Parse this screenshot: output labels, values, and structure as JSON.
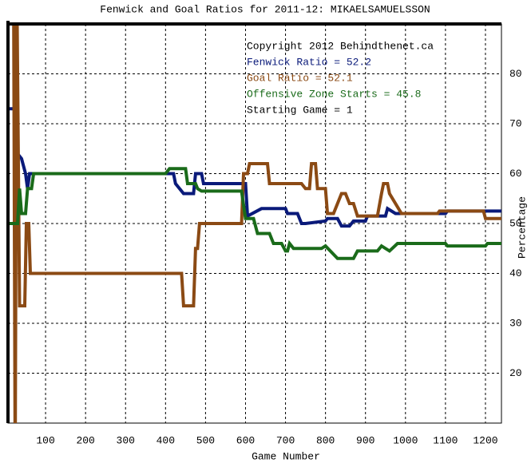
{
  "chart_data": {
    "type": "line",
    "title": "Fenwick and Goal Ratios for 2011-12: MIKAELSAMUELSSON",
    "x_label": "Game Number",
    "y_label": "Percentage",
    "annotations": [
      "Copyright 2012 Behindthenet.ca",
      "Starting Game = 1"
    ],
    "xlim": [
      6,
      1240
    ],
    "ylim": [
      10,
      90
    ],
    "xticks": [
      100,
      200,
      300,
      400,
      500,
      600,
      700,
      800,
      900,
      1000,
      1100,
      1200
    ],
    "yticks": [
      20,
      30,
      40,
      50,
      60,
      70,
      80
    ],
    "grid": true,
    "series": [
      {
        "name": "Fenwick Ratio = 52.2",
        "color": "#0a1a7a",
        "x": [
          6,
          28,
          30,
          40,
          50,
          55,
          60,
          420,
          425,
          445,
          470,
          475,
          490,
          495,
          600,
          605,
          640,
          700,
          705,
          730,
          740,
          750,
          800,
          805,
          830,
          840,
          860,
          870,
          900,
          905,
          950,
          955,
          975,
          1000,
          1100,
          1105,
          1240
        ],
        "values": [
          73,
          73,
          64,
          63,
          60,
          57,
          60,
          60,
          58,
          56,
          56,
          60,
          60,
          58,
          58,
          51.5,
          53,
          53,
          52,
          52,
          50,
          50,
          50.5,
          51,
          51,
          49.5,
          49.5,
          50.5,
          50.5,
          51.5,
          51.5,
          53,
          52,
          52,
          52,
          52.5,
          52.5
        ]
      },
      {
        "name": "Goal Ratio = 52.1",
        "color": "#8b4a14",
        "x": [
          20,
          24,
          28,
          35,
          40,
          48,
          52,
          58,
          62,
          70,
          75,
          440,
          445,
          470,
          475,
          480,
          485,
          590,
          595,
          605,
          610,
          655,
          660,
          740,
          750,
          760,
          765,
          775,
          780,
          800,
          805,
          820,
          830,
          840,
          850,
          860,
          870,
          880,
          930,
          940,
          945,
          955,
          960,
          990,
          995,
          1080,
          1085,
          1195,
          1200,
          1240
        ],
        "values": [
          100,
          0,
          100,
          33.5,
          33.5,
          33.5,
          50,
          50,
          40,
          40,
          40,
          40,
          33.5,
          33.5,
          45,
          45,
          50,
          50,
          60,
          60,
          62,
          62,
          58,
          58,
          57,
          57,
          62,
          62,
          57,
          57,
          52,
          52,
          54,
          56,
          56,
          54,
          54,
          51.5,
          51.5,
          56,
          58,
          58,
          56,
          52,
          52,
          52,
          52.5,
          52.5,
          51,
          51
        ]
      },
      {
        "name": "Offensive Zone Starts = 45.8",
        "color": "#1a6b1a",
        "x": [
          6,
          30,
          35,
          40,
          50,
          55,
          65,
          70,
          400,
          410,
          450,
          455,
          475,
          480,
          490,
          590,
          600,
          620,
          630,
          660,
          670,
          690,
          700,
          705,
          710,
          720,
          790,
          800,
          830,
          870,
          880,
          930,
          940,
          960,
          980,
          1100,
          1105,
          1200,
          1205,
          1240
        ],
        "values": [
          50,
          50,
          57,
          52,
          52,
          57,
          57,
          60,
          60,
          61,
          61,
          58,
          58,
          57,
          56.5,
          56.5,
          51,
          51,
          48,
          48,
          46,
          46,
          44.5,
          44.5,
          46,
          45,
          45,
          45.5,
          43,
          43,
          44.5,
          44.5,
          45.5,
          44.5,
          46,
          46,
          45.5,
          45.5,
          46,
          46
        ]
      }
    ]
  }
}
